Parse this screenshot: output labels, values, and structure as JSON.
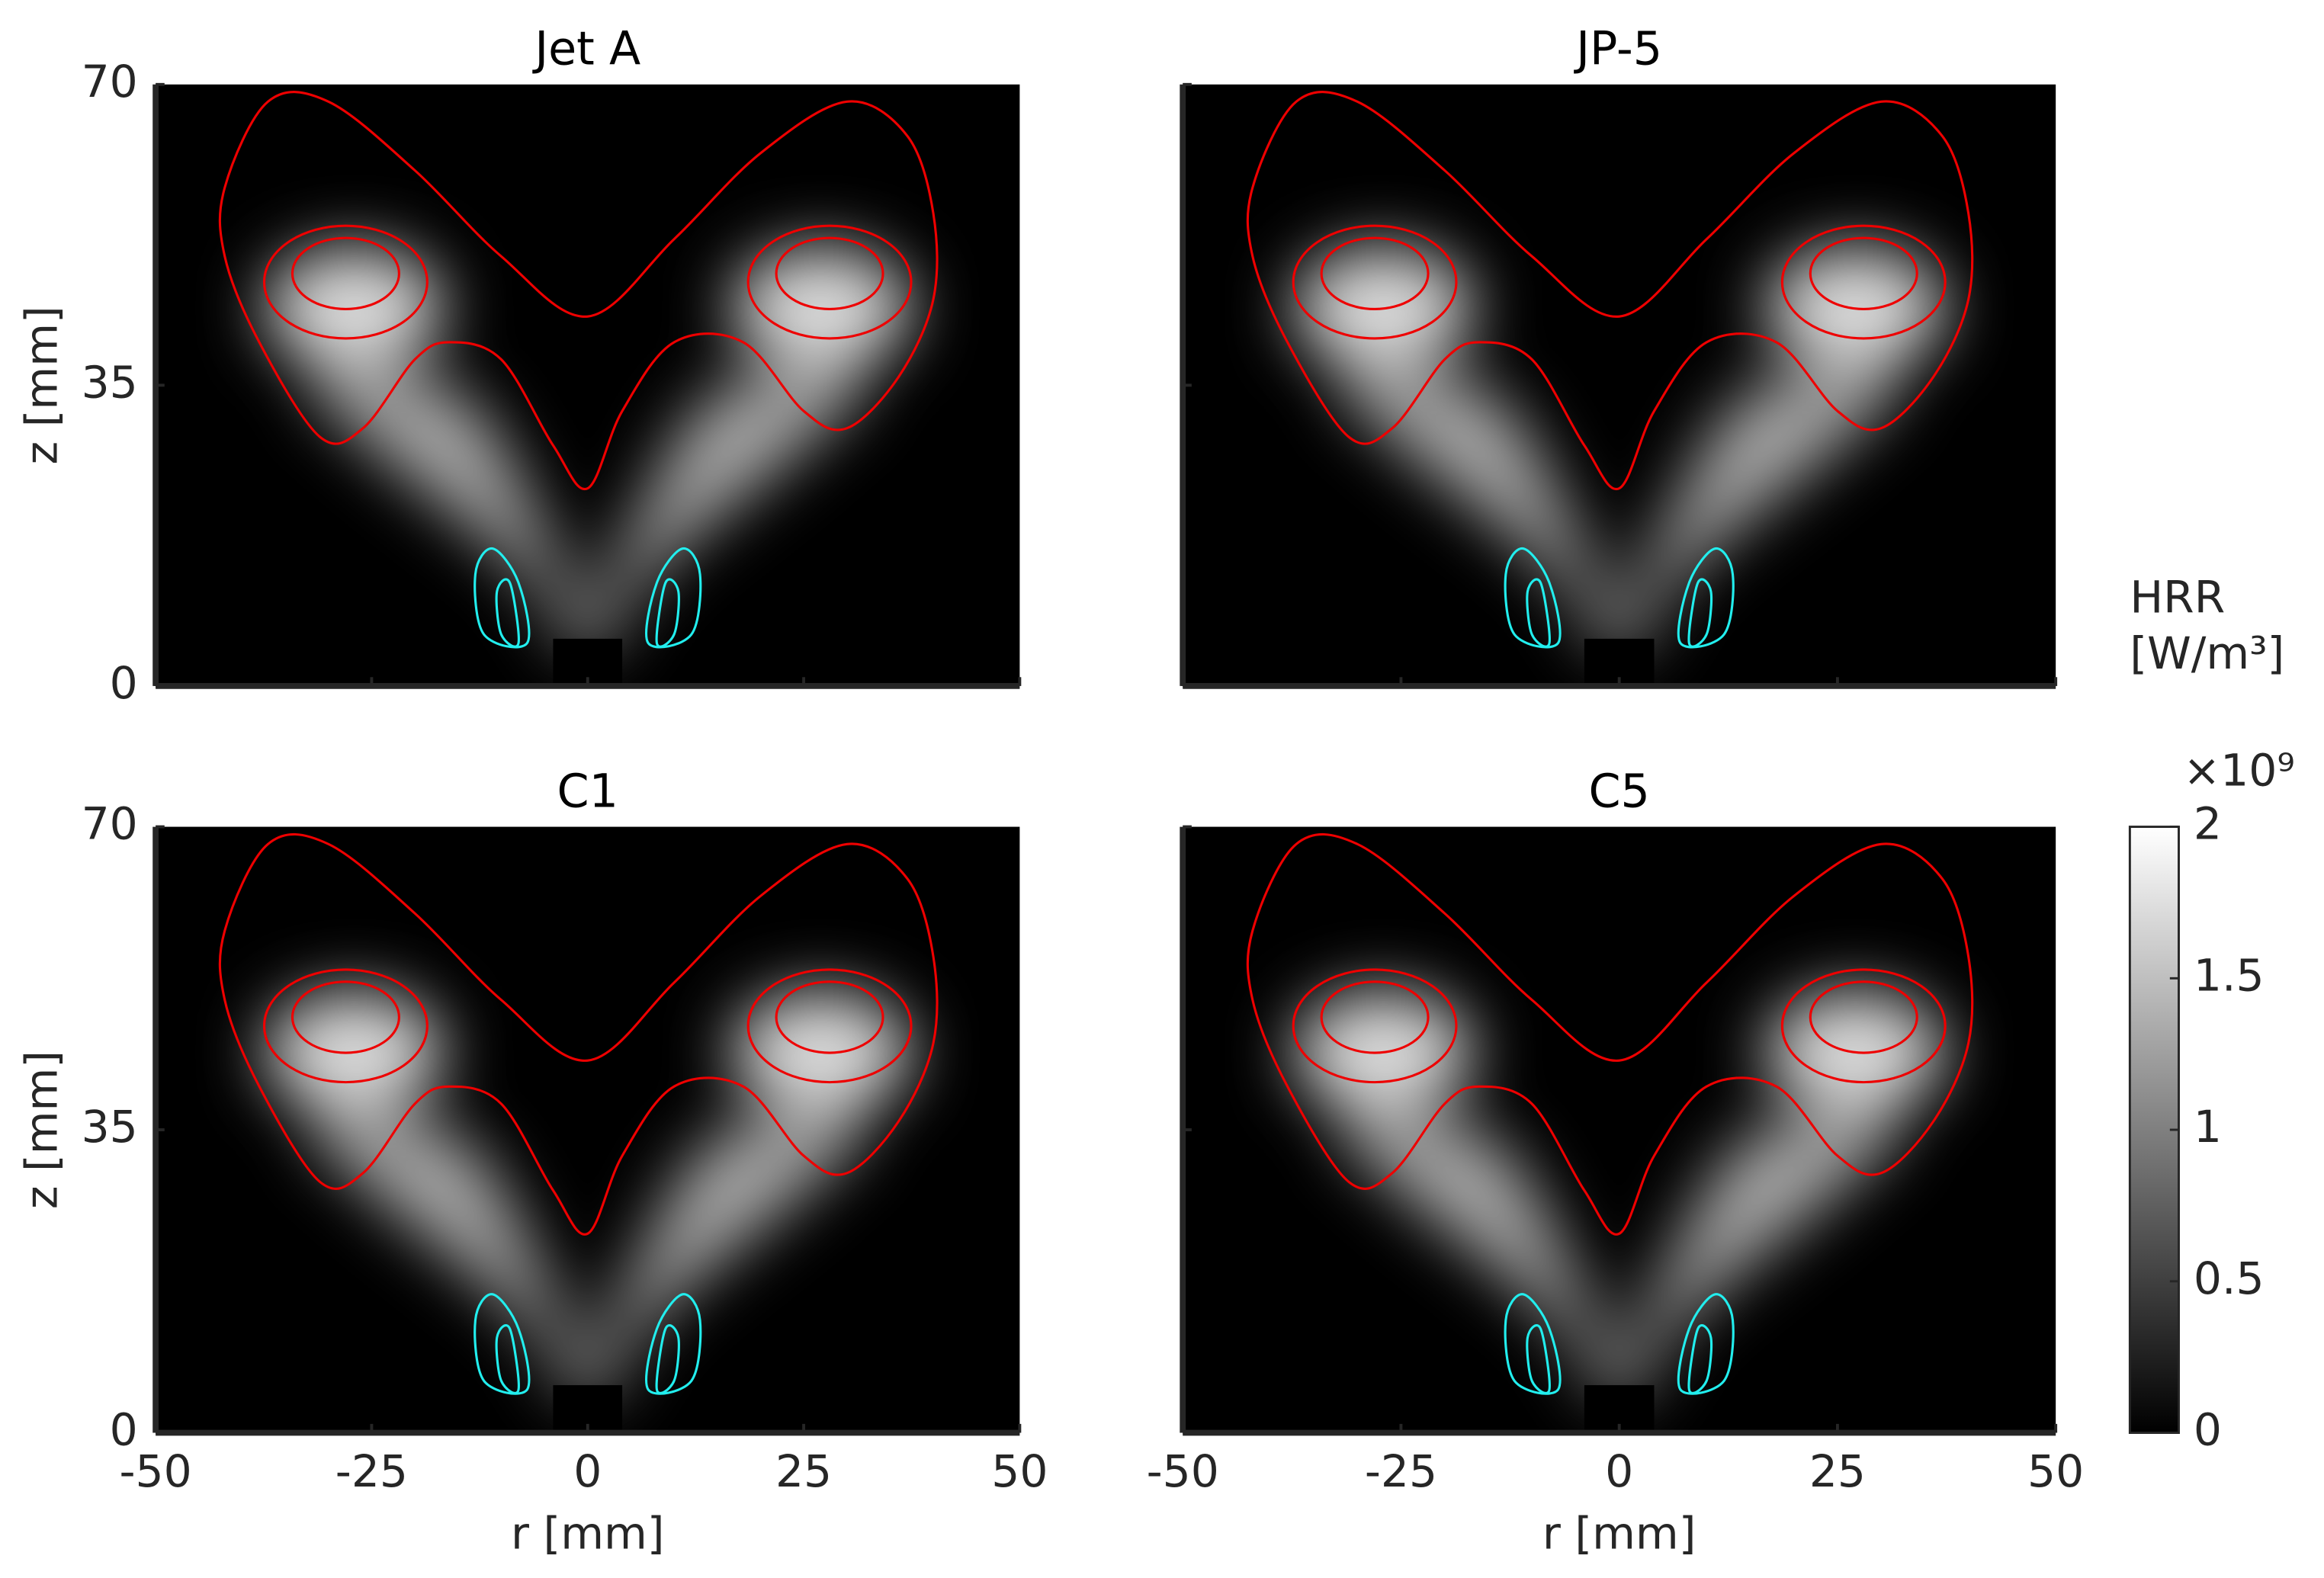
{
  "chart_data": [
    {
      "type": "heatmap",
      "title": "Jet A",
      "xlim": [
        -50,
        50
      ],
      "xticks": [
        -50,
        -25,
        0,
        25,
        50
      ],
      "ylim": [
        0,
        70
      ],
      "yticks": [
        0,
        35,
        70
      ],
      "ylabel": "z [mm]",
      "show_xticklabels": false,
      "show_yticklabels": true
    },
    {
      "type": "heatmap",
      "title": "JP-5",
      "xlim": [
        -50,
        50
      ],
      "xticks": [
        -50,
        -25,
        0,
        25,
        50
      ],
      "ylim": [
        0,
        70
      ],
      "yticks": [
        0,
        35,
        70
      ],
      "show_xticklabels": false,
      "show_yticklabels": false
    },
    {
      "type": "heatmap",
      "title": "C1",
      "xlim": [
        -50,
        50
      ],
      "xticks": [
        -50,
        -25,
        0,
        25,
        50
      ],
      "ylim": [
        0,
        70
      ],
      "yticks": [
        0,
        35,
        70
      ],
      "xlabel": "r [mm]",
      "ylabel": "z [mm]",
      "show_xticklabels": true,
      "show_yticklabels": true
    },
    {
      "type": "heatmap",
      "title": "C5",
      "xlim": [
        -50,
        50
      ],
      "xticks": [
        -50,
        -25,
        0,
        25,
        50
      ],
      "ylim": [
        0,
        70
      ],
      "yticks": [
        0,
        35,
        70
      ],
      "xlabel": "r [mm]",
      "show_xticklabels": true,
      "show_yticklabels": false
    }
  ],
  "colorbar": {
    "label": [
      "HRR",
      "[W/m³]"
    ],
    "multiplier": "×10⁹",
    "lim": [
      0,
      2
    ],
    "ticks": [
      0,
      0.5,
      1,
      1.5,
      2
    ]
  }
}
